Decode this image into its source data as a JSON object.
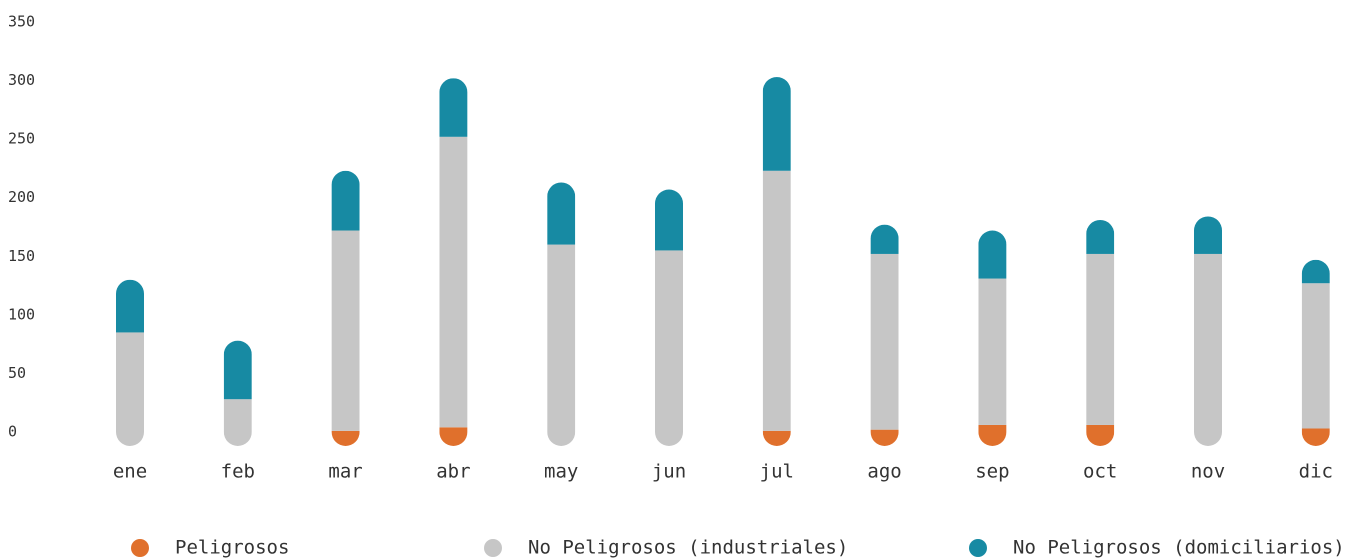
{
  "chart_data": {
    "type": "stacked_bar",
    "categories": [
      "ene",
      "feb",
      "mar",
      "abr",
      "may",
      "jun",
      "jul",
      "ago",
      "sep",
      "oct",
      "nov",
      "dic"
    ],
    "series": [
      {
        "name": "Peligrosos",
        "color": "#e0702c",
        "values": [
          0,
          0,
          1,
          4,
          0,
          0,
          1,
          2,
          6,
          6,
          0,
          3
        ]
      },
      {
        "name": "No Peligrosos (industriales)",
        "color": "#c6c6c6",
        "values": [
          85,
          28,
          171,
          248,
          160,
          155,
          222,
          150,
          125,
          146,
          152,
          124
        ]
      },
      {
        "name": "No Peligrosos (domiciliarios)",
        "color": "#178aa3",
        "values": [
          45,
          50,
          51,
          50,
          53,
          52,
          80,
          25,
          41,
          29,
          32,
          20
        ]
      }
    ],
    "ylim": [
      0,
      350
    ],
    "yticks": [
      0,
      50,
      100,
      150,
      200,
      250,
      300,
      350
    ],
    "legend": "bottom"
  }
}
